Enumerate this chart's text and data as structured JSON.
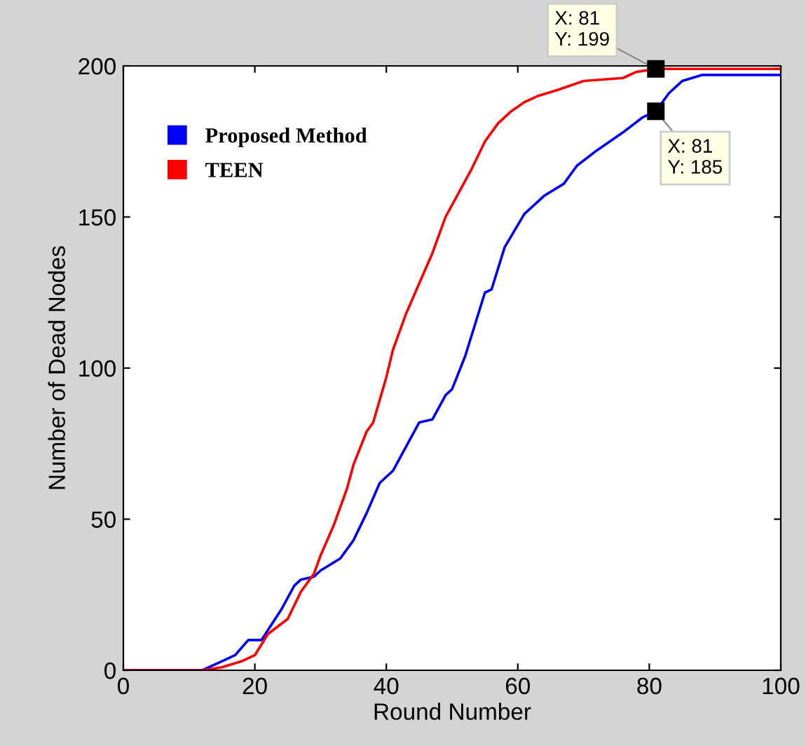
{
  "chart_data": {
    "type": "line",
    "xlabel": "Round Number",
    "ylabel": "Number of Dead Nodes",
    "xlim": [
      0,
      100
    ],
    "ylim": [
      0,
      200
    ],
    "xticks": [
      0,
      20,
      40,
      60,
      80,
      100
    ],
    "yticks": [
      0,
      50,
      100,
      150,
      200
    ],
    "grid": false,
    "legend": "top left",
    "marker": "none",
    "line_style": "solid",
    "series": [
      {
        "name": "Proposed Method",
        "color": "#0000ff",
        "x": [
          0,
          12,
          15,
          17,
          19,
          21,
          24,
          26,
          27,
          29,
          30,
          33,
          35,
          37,
          39,
          41,
          43,
          45,
          47,
          49,
          50,
          52,
          55,
          56,
          58,
          61,
          64,
          67,
          69,
          72,
          76,
          79,
          81,
          83,
          85,
          88,
          100
        ],
        "values": [
          0,
          0,
          3,
          5,
          10,
          10,
          20,
          28,
          30,
          31,
          33,
          37,
          43,
          52,
          62,
          66,
          74,
          82,
          83,
          91,
          93,
          104,
          125,
          126,
          140,
          151,
          157,
          161,
          167,
          172,
          178,
          183,
          185,
          191,
          195,
          197,
          197
        ]
      },
      {
        "name": "TEEN",
        "color": "#ff0000",
        "x": [
          0,
          12,
          15,
          18,
          20,
          22,
          25,
          27,
          29,
          30,
          32,
          34,
          35,
          37,
          38,
          40,
          41,
          43,
          45,
          47,
          49,
          51,
          53,
          55,
          57,
          59,
          61,
          63,
          66,
          70,
          76,
          78,
          81,
          100
        ],
        "values": [
          0,
          0,
          1,
          3,
          5,
          12,
          17,
          26,
          32,
          38,
          48,
          60,
          68,
          79,
          82,
          97,
          106,
          118,
          128,
          138,
          150,
          158,
          166,
          175,
          181,
          185,
          188,
          190,
          192,
          195,
          196,
          198,
          199,
          199
        ]
      }
    ],
    "annotations": [
      {
        "text": "X: 81\nY: 199",
        "x": 81,
        "y": 199
      },
      {
        "text": "X: 81\nY: 185",
        "x": 81,
        "y": 185
      }
    ]
  }
}
